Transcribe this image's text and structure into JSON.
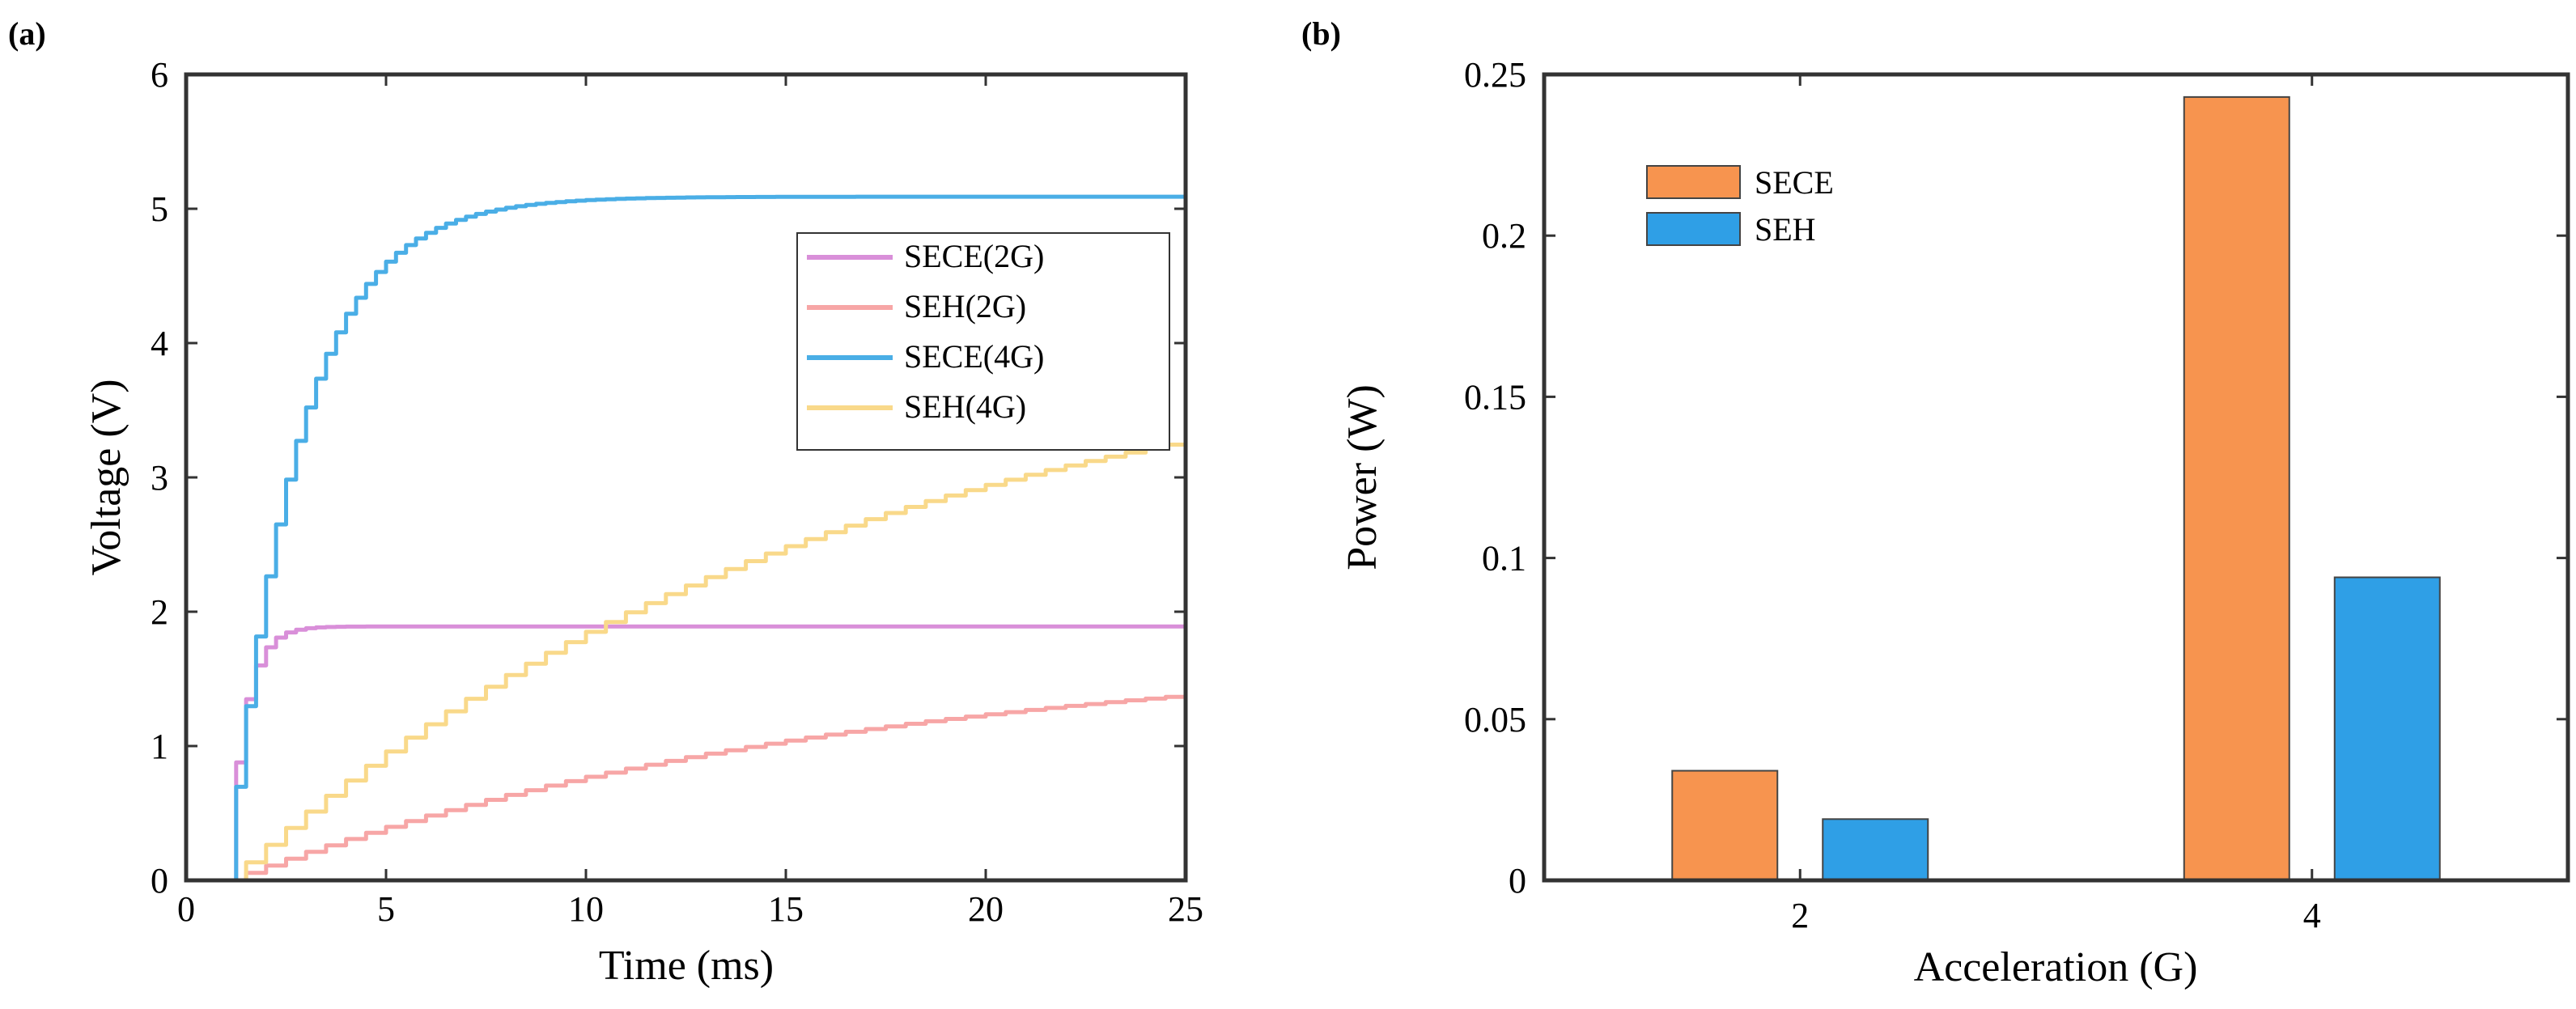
{
  "chart_data": [
    {
      "id": "a",
      "panel_label": "(a)",
      "type": "line",
      "xlabel": "Time (ms)",
      "ylabel": "Voltage (V)",
      "xlim": [
        0,
        25
      ],
      "ylim": [
        0,
        6
      ],
      "xticks": [
        0,
        5,
        10,
        15,
        20,
        25
      ],
      "yticks": [
        0,
        1,
        2,
        3,
        4,
        5,
        6
      ],
      "legend_position": "upper-right",
      "series": [
        {
          "name": "SECE(2G)",
          "color": "#d98fd9",
          "t0": 1.0,
          "vmax": 1.89,
          "tau": 0.4,
          "step_period": 0.25
        },
        {
          "name": "SEH(2G)",
          "color": "#f7a6a6",
          "t0": 1.0,
          "vmax": 1.75,
          "tau": 15.5,
          "step_period": 0.5
        },
        {
          "name": "SECE(4G)",
          "color": "#4aaee6",
          "t0": 1.0,
          "vmax": 5.09,
          "tau": 1.7,
          "step_period": 0.25
        },
        {
          "name": "SEH(4G)",
          "color": "#f9d98a",
          "t0": 1.0,
          "vmax": 4.1,
          "tau": 15.0,
          "step_period": 0.5
        }
      ]
    },
    {
      "id": "b",
      "panel_label": "(b)",
      "type": "bar",
      "xlabel": "Acceleration (G)",
      "ylabel": "Power (W)",
      "categories": [
        "2",
        "4"
      ],
      "ylim": [
        0,
        0.25
      ],
      "yticks": [
        0,
        0.05,
        0.1,
        0.15,
        0.2,
        0.25
      ],
      "legend_position": "upper-left",
      "series": [
        {
          "name": "SECE",
          "color": "#f7944f",
          "values": [
            0.034,
            0.243
          ]
        },
        {
          "name": "SEH",
          "color": "#2f9fe6",
          "values": [
            0.019,
            0.094
          ]
        }
      ]
    }
  ]
}
